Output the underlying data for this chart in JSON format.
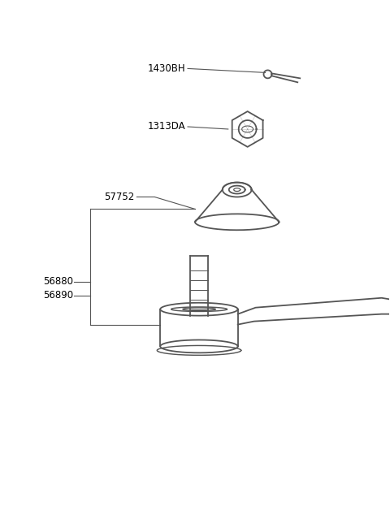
{
  "background_color": "#ffffff",
  "line_color": "#555555",
  "text_color": "#000000",
  "labels": {
    "cotter_pin": "1430BH",
    "nut": "1313DA",
    "dust_cover": "57752",
    "tie_rod_end_1": "56880",
    "tie_rod_end_2": "56890"
  },
  "figsize": [
    4.8,
    6.55
  ],
  "dpi": 100
}
